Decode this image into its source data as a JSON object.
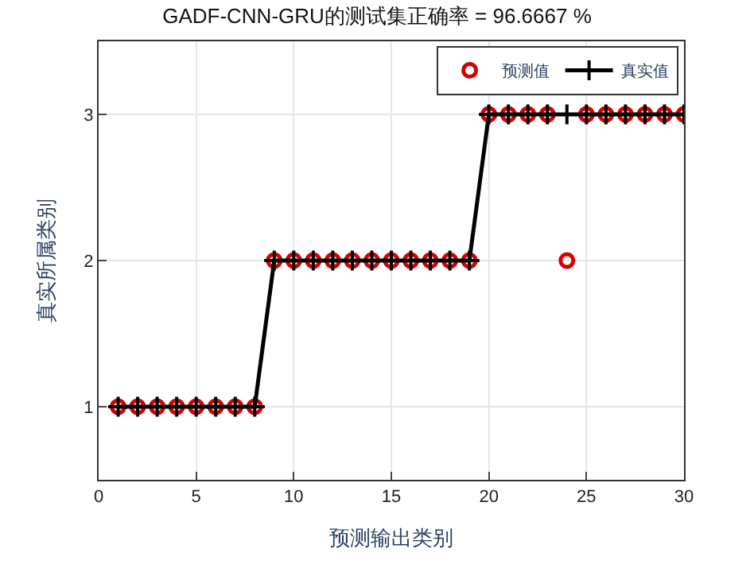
{
  "chart_data": {
    "type": "line",
    "title": "GADF-CNN-GRU的测试集正确率 = 96.6667 %",
    "xlabel": "预测输出类别",
    "ylabel": "真实所属类别",
    "x": [
      1,
      2,
      3,
      4,
      5,
      6,
      7,
      8,
      9,
      10,
      11,
      12,
      13,
      14,
      15,
      16,
      17,
      18,
      19,
      20,
      21,
      22,
      23,
      24,
      25,
      26,
      27,
      28,
      29,
      30
    ],
    "series": [
      {
        "name": "预测值",
        "type": "scatter",
        "marker": "circle",
        "color": "#d40000",
        "values": [
          1,
          1,
          1,
          1,
          1,
          1,
          1,
          1,
          2,
          2,
          2,
          2,
          2,
          2,
          2,
          2,
          2,
          2,
          2,
          3,
          3,
          3,
          3,
          2,
          3,
          3,
          3,
          3,
          3,
          3
        ]
      },
      {
        "name": "真实值",
        "marker": "cross",
        "color": "#000000",
        "values": [
          1,
          1,
          1,
          1,
          1,
          1,
          1,
          1,
          2,
          2,
          2,
          2,
          2,
          2,
          2,
          2,
          2,
          2,
          2,
          3,
          3,
          3,
          3,
          3,
          3,
          3,
          3,
          3,
          3,
          3
        ]
      }
    ],
    "xlim": [
      0,
      30
    ],
    "xticks": [
      0,
      5,
      10,
      15,
      20,
      25,
      30
    ],
    "ylim": [
      0.5,
      3.5
    ],
    "yticks": [
      1,
      2,
      3
    ],
    "grid": true,
    "legend": "top right"
  }
}
